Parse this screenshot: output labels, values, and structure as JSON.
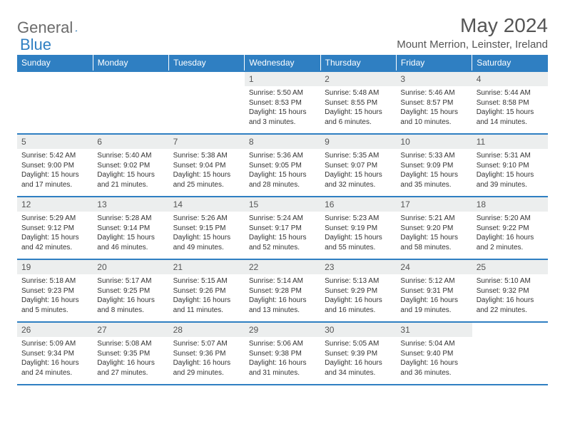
{
  "brand": {
    "part1": "General",
    "part2": "Blue"
  },
  "title": "May 2024",
  "location": "Mount Merrion, Leinster, Ireland",
  "colors": {
    "header_bg": "#2f7fc2",
    "row_border": "#2f7fc2",
    "daynum_bg": "#eceeee"
  },
  "day_headers": [
    "Sunday",
    "Monday",
    "Tuesday",
    "Wednesday",
    "Thursday",
    "Friday",
    "Saturday"
  ],
  "weeks": [
    [
      null,
      null,
      null,
      {
        "n": "1",
        "sr": "5:50 AM",
        "ss": "8:53 PM",
        "dl": "15 hours and 3 minutes."
      },
      {
        "n": "2",
        "sr": "5:48 AM",
        "ss": "8:55 PM",
        "dl": "15 hours and 6 minutes."
      },
      {
        "n": "3",
        "sr": "5:46 AM",
        "ss": "8:57 PM",
        "dl": "15 hours and 10 minutes."
      },
      {
        "n": "4",
        "sr": "5:44 AM",
        "ss": "8:58 PM",
        "dl": "15 hours and 14 minutes."
      }
    ],
    [
      {
        "n": "5",
        "sr": "5:42 AM",
        "ss": "9:00 PM",
        "dl": "15 hours and 17 minutes."
      },
      {
        "n": "6",
        "sr": "5:40 AM",
        "ss": "9:02 PM",
        "dl": "15 hours and 21 minutes."
      },
      {
        "n": "7",
        "sr": "5:38 AM",
        "ss": "9:04 PM",
        "dl": "15 hours and 25 minutes."
      },
      {
        "n": "8",
        "sr": "5:36 AM",
        "ss": "9:05 PM",
        "dl": "15 hours and 28 minutes."
      },
      {
        "n": "9",
        "sr": "5:35 AM",
        "ss": "9:07 PM",
        "dl": "15 hours and 32 minutes."
      },
      {
        "n": "10",
        "sr": "5:33 AM",
        "ss": "9:09 PM",
        "dl": "15 hours and 35 minutes."
      },
      {
        "n": "11",
        "sr": "5:31 AM",
        "ss": "9:10 PM",
        "dl": "15 hours and 39 minutes."
      }
    ],
    [
      {
        "n": "12",
        "sr": "5:29 AM",
        "ss": "9:12 PM",
        "dl": "15 hours and 42 minutes."
      },
      {
        "n": "13",
        "sr": "5:28 AM",
        "ss": "9:14 PM",
        "dl": "15 hours and 46 minutes."
      },
      {
        "n": "14",
        "sr": "5:26 AM",
        "ss": "9:15 PM",
        "dl": "15 hours and 49 minutes."
      },
      {
        "n": "15",
        "sr": "5:24 AM",
        "ss": "9:17 PM",
        "dl": "15 hours and 52 minutes."
      },
      {
        "n": "16",
        "sr": "5:23 AM",
        "ss": "9:19 PM",
        "dl": "15 hours and 55 minutes."
      },
      {
        "n": "17",
        "sr": "5:21 AM",
        "ss": "9:20 PM",
        "dl": "15 hours and 58 minutes."
      },
      {
        "n": "18",
        "sr": "5:20 AM",
        "ss": "9:22 PM",
        "dl": "16 hours and 2 minutes."
      }
    ],
    [
      {
        "n": "19",
        "sr": "5:18 AM",
        "ss": "9:23 PM",
        "dl": "16 hours and 5 minutes."
      },
      {
        "n": "20",
        "sr": "5:17 AM",
        "ss": "9:25 PM",
        "dl": "16 hours and 8 minutes."
      },
      {
        "n": "21",
        "sr": "5:15 AM",
        "ss": "9:26 PM",
        "dl": "16 hours and 11 minutes."
      },
      {
        "n": "22",
        "sr": "5:14 AM",
        "ss": "9:28 PM",
        "dl": "16 hours and 13 minutes."
      },
      {
        "n": "23",
        "sr": "5:13 AM",
        "ss": "9:29 PM",
        "dl": "16 hours and 16 minutes."
      },
      {
        "n": "24",
        "sr": "5:12 AM",
        "ss": "9:31 PM",
        "dl": "16 hours and 19 minutes."
      },
      {
        "n": "25",
        "sr": "5:10 AM",
        "ss": "9:32 PM",
        "dl": "16 hours and 22 minutes."
      }
    ],
    [
      {
        "n": "26",
        "sr": "5:09 AM",
        "ss": "9:34 PM",
        "dl": "16 hours and 24 minutes."
      },
      {
        "n": "27",
        "sr": "5:08 AM",
        "ss": "9:35 PM",
        "dl": "16 hours and 27 minutes."
      },
      {
        "n": "28",
        "sr": "5:07 AM",
        "ss": "9:36 PM",
        "dl": "16 hours and 29 minutes."
      },
      {
        "n": "29",
        "sr": "5:06 AM",
        "ss": "9:38 PM",
        "dl": "16 hours and 31 minutes."
      },
      {
        "n": "30",
        "sr": "5:05 AM",
        "ss": "9:39 PM",
        "dl": "16 hours and 34 minutes."
      },
      {
        "n": "31",
        "sr": "5:04 AM",
        "ss": "9:40 PM",
        "dl": "16 hours and 36 minutes."
      },
      null
    ]
  ],
  "labels": {
    "sunrise": "Sunrise:",
    "sunset": "Sunset:",
    "daylight": "Daylight:"
  }
}
